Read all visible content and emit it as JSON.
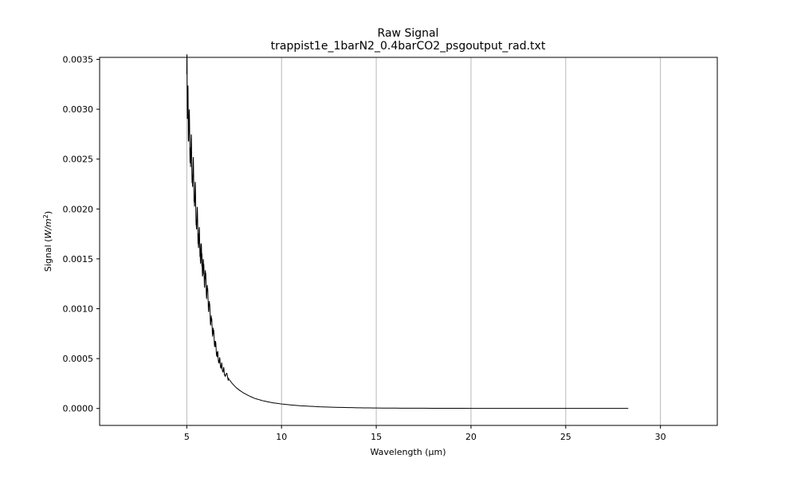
{
  "chart_data": {
    "type": "line",
    "title": "Raw Signal",
    "subtitle": "trappist1e_1barN2_0.4barCO2_psgoutput_rad.txt",
    "xlabel": "Wavelength (μm)",
    "ylabel_text": "Signal (",
    "ylabel_unit": "W/m",
    "ylabel_exp": "2",
    "ylabel_close": ")",
    "xlim": [
      0.4,
      33.0
    ],
    "ylim": [
      -0.00017,
      0.00352
    ],
    "xticks": [
      5,
      10,
      15,
      20,
      25,
      30
    ],
    "xtick_labels": [
      "5",
      "10",
      "15",
      "20",
      "25",
      "30"
    ],
    "yticks": [
      0.0,
      0.0005,
      0.001,
      0.0015,
      0.002,
      0.0025,
      0.003,
      0.0035
    ],
    "ytick_labels": [
      "0.0000",
      "0.0005",
      "0.0010",
      "0.0015",
      "0.0020",
      "0.0025",
      "0.0030",
      "0.0035"
    ],
    "grid": "vertical",
    "legend": "none",
    "color": "#000000",
    "series": [
      {
        "x": [
          5.0,
          5.05,
          5.1,
          5.2,
          5.3,
          5.4,
          5.5,
          5.6,
          5.7,
          5.8,
          5.9,
          6.0,
          6.1,
          6.2,
          6.3,
          6.4,
          6.5,
          6.6,
          6.7,
          6.8,
          6.9,
          7.0,
          7.2,
          7.4,
          7.6,
          7.8,
          8.0,
          8.3,
          8.6,
          9.0,
          9.5,
          10.0,
          10.5,
          11.0,
          12.0,
          13.0,
          14.0,
          15.0,
          17.0,
          20.0,
          23.0,
          26.0,
          28.3
        ],
        "y": [
          0.00335,
          0.00305,
          0.00285,
          0.00262,
          0.00242,
          0.00222,
          0.00198,
          0.00178,
          0.00162,
          0.00148,
          0.00135,
          0.00126,
          0.00112,
          0.00098,
          0.00085,
          0.00075,
          0.00064,
          0.00055,
          0.00049,
          0.00044,
          0.0004,
          0.00036,
          0.0003,
          0.00025,
          0.00021,
          0.00018,
          0.000155,
          0.000125,
          0.0001,
          7.8e-05,
          5.8e-05,
          4.5e-05,
          3.5e-05,
          2.7e-05,
          1.7e-05,
          1.1e-05,
          7e-06,
          4.5e-06,
          2.5e-06,
          1.2e-06,
          7e-07,
          4e-07,
          3e-07
        ],
        "noise_range": [
          5.0,
          7.2
        ]
      }
    ]
  }
}
